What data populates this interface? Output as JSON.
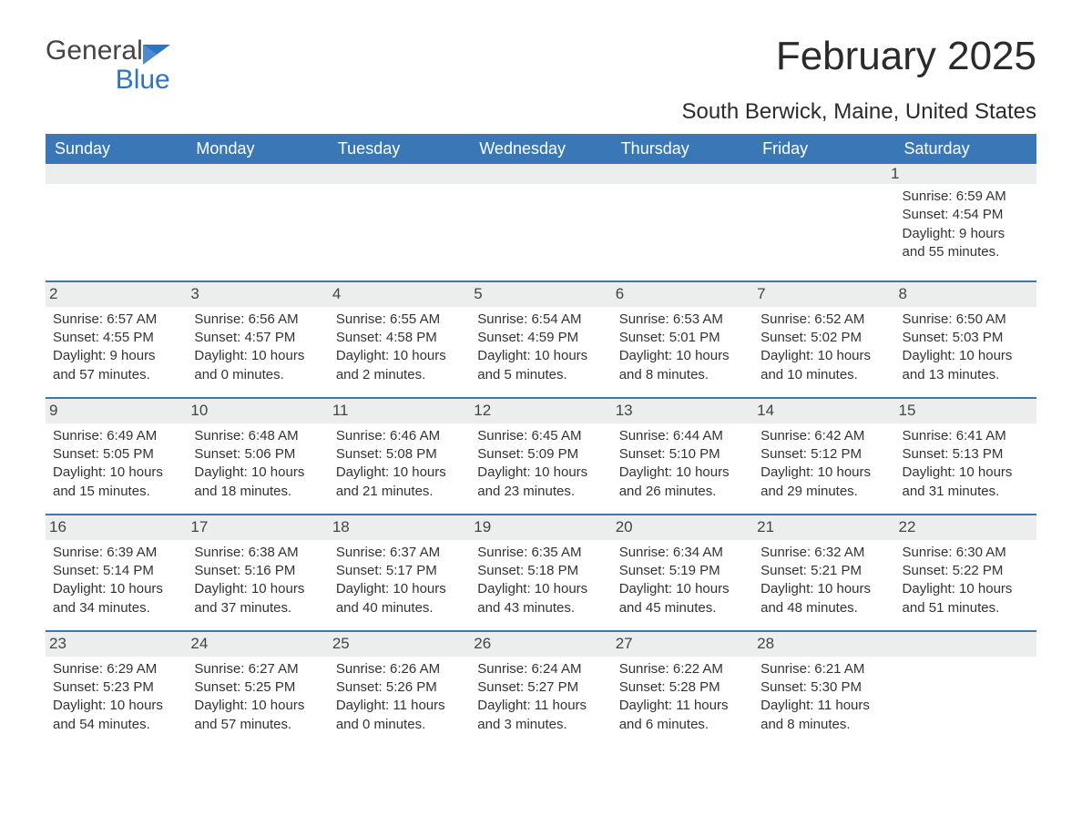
{
  "logo": {
    "word1": "General",
    "word2": "Blue"
  },
  "title": "February 2025",
  "location": "South Berwick, Maine, United States",
  "colors": {
    "header_bg": "#3a77b7",
    "header_text": "#ffffff",
    "divider": "#3a77b7",
    "daynum_bg": "#eceded",
    "text": "#333333",
    "logo_blue": "#2f75c2"
  },
  "dow": [
    "Sunday",
    "Monday",
    "Tuesday",
    "Wednesday",
    "Thursday",
    "Friday",
    "Saturday"
  ],
  "first_day_index": 6,
  "days": [
    {
      "n": 1,
      "sunrise": "6:59 AM",
      "sunset": "4:54 PM",
      "dl": "9 hours and 55 minutes."
    },
    {
      "n": 2,
      "sunrise": "6:57 AM",
      "sunset": "4:55 PM",
      "dl": "9 hours and 57 minutes."
    },
    {
      "n": 3,
      "sunrise": "6:56 AM",
      "sunset": "4:57 PM",
      "dl": "10 hours and 0 minutes."
    },
    {
      "n": 4,
      "sunrise": "6:55 AM",
      "sunset": "4:58 PM",
      "dl": "10 hours and 2 minutes."
    },
    {
      "n": 5,
      "sunrise": "6:54 AM",
      "sunset": "4:59 PM",
      "dl": "10 hours and 5 minutes."
    },
    {
      "n": 6,
      "sunrise": "6:53 AM",
      "sunset": "5:01 PM",
      "dl": "10 hours and 8 minutes."
    },
    {
      "n": 7,
      "sunrise": "6:52 AM",
      "sunset": "5:02 PM",
      "dl": "10 hours and 10 minutes."
    },
    {
      "n": 8,
      "sunrise": "6:50 AM",
      "sunset": "5:03 PM",
      "dl": "10 hours and 13 minutes."
    },
    {
      "n": 9,
      "sunrise": "6:49 AM",
      "sunset": "5:05 PM",
      "dl": "10 hours and 15 minutes."
    },
    {
      "n": 10,
      "sunrise": "6:48 AM",
      "sunset": "5:06 PM",
      "dl": "10 hours and 18 minutes."
    },
    {
      "n": 11,
      "sunrise": "6:46 AM",
      "sunset": "5:08 PM",
      "dl": "10 hours and 21 minutes."
    },
    {
      "n": 12,
      "sunrise": "6:45 AM",
      "sunset": "5:09 PM",
      "dl": "10 hours and 23 minutes."
    },
    {
      "n": 13,
      "sunrise": "6:44 AM",
      "sunset": "5:10 PM",
      "dl": "10 hours and 26 minutes."
    },
    {
      "n": 14,
      "sunrise": "6:42 AM",
      "sunset": "5:12 PM",
      "dl": "10 hours and 29 minutes."
    },
    {
      "n": 15,
      "sunrise": "6:41 AM",
      "sunset": "5:13 PM",
      "dl": "10 hours and 31 minutes."
    },
    {
      "n": 16,
      "sunrise": "6:39 AM",
      "sunset": "5:14 PM",
      "dl": "10 hours and 34 minutes."
    },
    {
      "n": 17,
      "sunrise": "6:38 AM",
      "sunset": "5:16 PM",
      "dl": "10 hours and 37 minutes."
    },
    {
      "n": 18,
      "sunrise": "6:37 AM",
      "sunset": "5:17 PM",
      "dl": "10 hours and 40 minutes."
    },
    {
      "n": 19,
      "sunrise": "6:35 AM",
      "sunset": "5:18 PM",
      "dl": "10 hours and 43 minutes."
    },
    {
      "n": 20,
      "sunrise": "6:34 AM",
      "sunset": "5:19 PM",
      "dl": "10 hours and 45 minutes."
    },
    {
      "n": 21,
      "sunrise": "6:32 AM",
      "sunset": "5:21 PM",
      "dl": "10 hours and 48 minutes."
    },
    {
      "n": 22,
      "sunrise": "6:30 AM",
      "sunset": "5:22 PM",
      "dl": "10 hours and 51 minutes."
    },
    {
      "n": 23,
      "sunrise": "6:29 AM",
      "sunset": "5:23 PM",
      "dl": "10 hours and 54 minutes."
    },
    {
      "n": 24,
      "sunrise": "6:27 AM",
      "sunset": "5:25 PM",
      "dl": "10 hours and 57 minutes."
    },
    {
      "n": 25,
      "sunrise": "6:26 AM",
      "sunset": "5:26 PM",
      "dl": "11 hours and 0 minutes."
    },
    {
      "n": 26,
      "sunrise": "6:24 AM",
      "sunset": "5:27 PM",
      "dl": "11 hours and 3 minutes."
    },
    {
      "n": 27,
      "sunrise": "6:22 AM",
      "sunset": "5:28 PM",
      "dl": "11 hours and 6 minutes."
    },
    {
      "n": 28,
      "sunrise": "6:21 AM",
      "sunset": "5:30 PM",
      "dl": "11 hours and 8 minutes."
    }
  ],
  "labels": {
    "sunrise": "Sunrise: ",
    "sunset": "Sunset: ",
    "daylight": "Daylight: "
  }
}
